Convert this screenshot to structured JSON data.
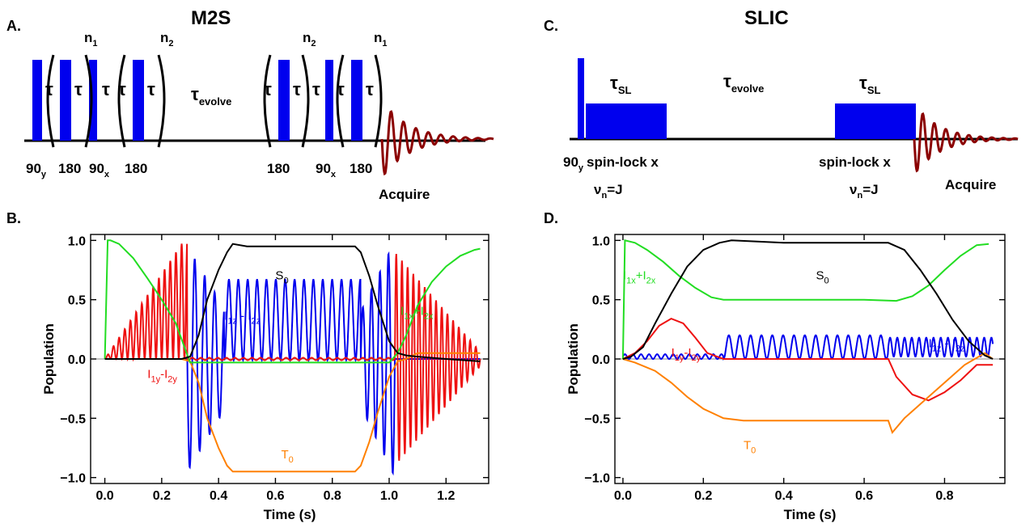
{
  "panels": {
    "A": {
      "label": "A.",
      "title": "M2S",
      "taus": [
        "τ",
        "τ",
        "τ",
        "τ",
        "τ",
        "τ",
        "τ",
        "τ",
        "τ",
        "τ"
      ],
      "tau_evolve": "τ",
      "evolve_sub": "evolve",
      "n1": "n",
      "n1_sub": "1",
      "n2": "n",
      "n2_sub": "2",
      "labels": [
        "90",
        "180",
        "90",
        "180",
        "180",
        "90",
        "180"
      ],
      "label_subs": [
        "y",
        "",
        "x",
        "",
        "",
        "x",
        ""
      ],
      "acquire": "Acquire"
    },
    "C": {
      "label": "C.",
      "title": "SLIC",
      "tau_sl": "τ",
      "tau_sl_sub": "SL",
      "tau_evolve": "τ",
      "evolve_sub": "evolve",
      "pulse90": "90",
      "pulse90_sub": "y",
      "spinlock1": "spin-lock x",
      "spinlock2": "spin-lock x",
      "nu": "ν",
      "nu_sub": "n",
      "nu_eq": "=J",
      "acquire": "Acquire"
    },
    "B": {
      "label": "B."
    },
    "D": {
      "label": "D."
    }
  },
  "colors": {
    "pulse": "#0000ee",
    "fid": "#8b0000",
    "S0": "#000000",
    "I1z_I2z": "#0000ee",
    "I1x_I2x": "#22dd22",
    "I1y_I2y": "#ee1111",
    "T0": "#ff8000"
  },
  "chart_data": [
    {
      "type": "line",
      "panel": "B",
      "xlabel": "Time (s)",
      "ylabel": "Population",
      "xlim": [
        -0.05,
        1.35
      ],
      "ylim": [
        -1.05,
        1.05
      ],
      "xticks": [
        "0.0",
        "0.2",
        "0.4",
        "0.6",
        "0.8",
        "1.0",
        "1.2"
      ],
      "xtick_values": [
        0.0,
        0.2,
        0.4,
        0.6,
        0.8,
        1.0,
        1.2
      ],
      "yticks": [
        "1.0",
        "0.5",
        "0.0",
        "−0.5",
        "−1.0"
      ],
      "ytick_values": [
        1.0,
        0.5,
        0.0,
        -0.5,
        -1.0
      ],
      "series": [
        {
          "key": "I1x_I2x",
          "name": "I1x+I2x",
          "label_main": "I",
          "label_parts": [
            "1x",
            "+I",
            "2x"
          ],
          "x": [
            0,
            0.01,
            0.02,
            0.05,
            0.1,
            0.15,
            0.2,
            0.25,
            0.28,
            0.3,
            0.35,
            0.5,
            0.7,
            0.9,
            1.0,
            1.03,
            1.06,
            1.1,
            1.15,
            1.2,
            1.25,
            1.3,
            1.32
          ],
          "y": [
            0,
            1.0,
            1.0,
            0.97,
            0.85,
            0.68,
            0.5,
            0.3,
            0.1,
            -0.03,
            -0.03,
            -0.03,
            -0.03,
            -0.03,
            -0.03,
            0.05,
            0.2,
            0.45,
            0.65,
            0.78,
            0.87,
            0.92,
            0.93
          ]
        },
        {
          "key": "S0",
          "name": "S0",
          "label_main": "S",
          "label_parts": [
            "0"
          ],
          "x": [
            0,
            0.27,
            0.3,
            0.33,
            0.36,
            0.4,
            0.43,
            0.45,
            0.5,
            0.6,
            0.7,
            0.8,
            0.88,
            0.9,
            0.93,
            0.96,
            1.0,
            1.03,
            1.06,
            1.1,
            1.2,
            1.32
          ],
          "y": [
            0,
            0,
            0.02,
            0.2,
            0.5,
            0.75,
            0.9,
            0.97,
            0.95,
            0.95,
            0.95,
            0.95,
            0.95,
            0.9,
            0.7,
            0.45,
            0.15,
            0.05,
            0.03,
            0.02,
            0.0,
            -0.02
          ]
        },
        {
          "key": "T0",
          "name": "T0",
          "label_main": "T",
          "label_parts": [
            "0"
          ],
          "x": [
            0,
            0.27,
            0.3,
            0.33,
            0.36,
            0.4,
            0.43,
            0.45,
            0.5,
            0.6,
            0.7,
            0.8,
            0.88,
            0.9,
            0.93,
            0.96,
            1.0,
            1.03,
            1.06,
            1.1,
            1.2,
            1.32
          ],
          "y": [
            0,
            0,
            -0.02,
            -0.2,
            -0.5,
            -0.75,
            -0.9,
            -0.95,
            -0.95,
            -0.95,
            -0.95,
            -0.95,
            -0.95,
            -0.9,
            -0.7,
            -0.45,
            -0.15,
            -0.02,
            0.0,
            0.05,
            0.05,
            0.05
          ]
        },
        {
          "key": "I1z_I2z",
          "name": "I1z - I2z",
          "label_main": "I",
          "label_parts": [
            "1z",
            " - I",
            "2z"
          ],
          "x": [],
          "y": []
        },
        {
          "key": "I1y_I2y",
          "name": "I1y-I2y",
          "label_main": "I",
          "label_parts": [
            "1y",
            "-I",
            "2y"
          ],
          "x": [],
          "y": []
        }
      ],
      "annotations": [
        {
          "series": "S0",
          "x": 0.6,
          "y": 0.67
        },
        {
          "series": "I1z_I2z",
          "x": 0.42,
          "y": 0.33
        },
        {
          "series": "I1x_I2x",
          "x": 1.04,
          "y": 0.37
        },
        {
          "series": "I1y_I2y",
          "x": 0.15,
          "y": -0.16
        },
        {
          "series": "T0",
          "x": 0.62,
          "y": -0.84
        }
      ]
    },
    {
      "type": "line",
      "panel": "D",
      "xlabel": "Time (s)",
      "ylabel": "Population",
      "xlim": [
        -0.02,
        0.95
      ],
      "ylim": [
        -1.05,
        1.05
      ],
      "xticks": [
        "0.0",
        "0.2",
        "0.4",
        "0.6",
        "0.8"
      ],
      "xtick_values": [
        0.0,
        0.2,
        0.4,
        0.6,
        0.8
      ],
      "yticks": [
        "1.0",
        "0.5",
        "0.0",
        "−0.5",
        "−1.0"
      ],
      "ytick_values": [
        1.0,
        0.5,
        0.0,
        -0.5,
        -1.0
      ],
      "series": [
        {
          "key": "I1x_I2x",
          "name": "I1x+I2x",
          "label_main": "I",
          "label_parts": [
            "1x",
            "+I",
            "2x"
          ],
          "x": [
            0,
            0.005,
            0.03,
            0.06,
            0.1,
            0.14,
            0.18,
            0.22,
            0.25,
            0.4,
            0.6,
            0.68,
            0.72,
            0.76,
            0.8,
            0.84,
            0.88,
            0.91
          ],
          "y": [
            0,
            1.0,
            0.98,
            0.92,
            0.82,
            0.7,
            0.6,
            0.52,
            0.5,
            0.5,
            0.5,
            0.49,
            0.53,
            0.62,
            0.75,
            0.87,
            0.96,
            0.97
          ]
        },
        {
          "key": "S0",
          "name": "S0",
          "label_main": "S",
          "label_parts": [
            "0"
          ],
          "x": [
            0,
            0.02,
            0.05,
            0.08,
            0.12,
            0.16,
            0.2,
            0.24,
            0.27,
            0.4,
            0.6,
            0.66,
            0.7,
            0.74,
            0.78,
            0.82,
            0.86,
            0.9,
            0.92
          ],
          "y": [
            0,
            0.02,
            0.1,
            0.3,
            0.55,
            0.78,
            0.92,
            0.98,
            1.0,
            0.98,
            0.98,
            0.98,
            0.92,
            0.75,
            0.55,
            0.33,
            0.15,
            0.03,
            0.0
          ]
        },
        {
          "key": "T0",
          "name": "T0",
          "label_main": "T",
          "label_parts": [
            "0"
          ],
          "x": [
            0,
            0.03,
            0.08,
            0.12,
            0.16,
            0.2,
            0.25,
            0.3,
            0.4,
            0.6,
            0.66,
            0.67,
            0.7,
            0.75,
            0.8,
            0.85,
            0.9,
            0.92
          ],
          "y": [
            0,
            -0.03,
            -0.1,
            -0.2,
            -0.32,
            -0.42,
            -0.5,
            -0.52,
            -0.52,
            -0.52,
            -0.52,
            -0.62,
            -0.5,
            -0.35,
            -0.2,
            -0.05,
            0.05,
            0.0
          ]
        },
        {
          "key": "I1z_I2z",
          "name": "I1z - I2z",
          "label_main": "I",
          "label_parts": [
            "1z",
            " - I",
            "2z"
          ],
          "x": [],
          "y": []
        },
        {
          "key": "I1y_I2y",
          "name": "I1y-I2y",
          "label_main": "I",
          "label_parts": [
            "1y",
            "-I",
            "2y"
          ],
          "x": [
            0,
            0.03,
            0.06,
            0.09,
            0.12,
            0.15,
            0.18,
            0.21,
            0.25,
            0.4,
            0.6,
            0.66,
            0.68,
            0.72,
            0.76,
            0.8,
            0.84,
            0.88,
            0.92
          ],
          "y": [
            0,
            0.05,
            0.15,
            0.28,
            0.34,
            0.3,
            0.18,
            0.05,
            0.0,
            0.0,
            0.0,
            0.0,
            -0.15,
            -0.3,
            -0.35,
            -0.28,
            -0.18,
            -0.05,
            -0.05
          ]
        }
      ],
      "annotations": [
        {
          "series": "S0",
          "x": 0.48,
          "y": 0.67
        },
        {
          "series": "I1z_I2z",
          "x": 0.76,
          "y": 0.1
        },
        {
          "series": "I1x_I2x",
          "x": 0.0,
          "y": 0.67
        },
        {
          "series": "I1y_I2y",
          "x": 0.12,
          "y": 0.02
        },
        {
          "series": "T0",
          "x": 0.3,
          "y": -0.76
        }
      ]
    }
  ]
}
